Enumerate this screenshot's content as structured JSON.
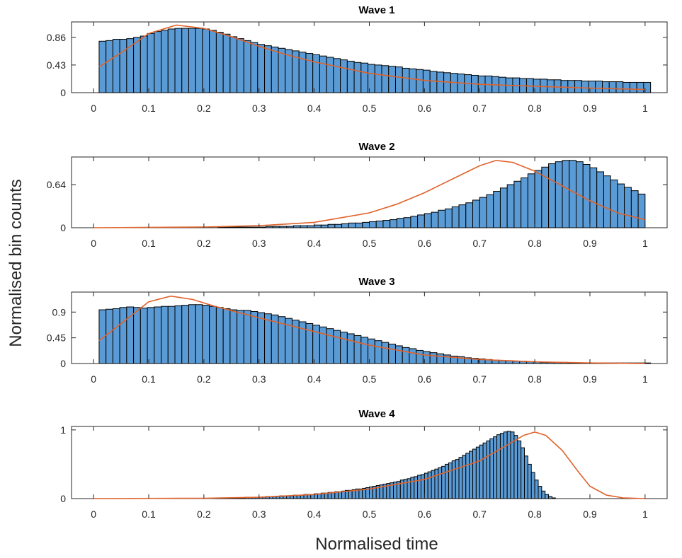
{
  "xlabel": "Normalised time",
  "ylabel": "Normalised bin counts",
  "colors": {
    "bar": "#5b9bd5",
    "bar_edge": "#000000",
    "fit": "#e0622a"
  },
  "chart_data": [
    {
      "type": "bar",
      "title": "Wave 1",
      "xlim": [
        -0.04,
        1.04
      ],
      "ylim": [
        0,
        1.1
      ],
      "xticks": [
        "0",
        "0.1",
        "0.2",
        "0.3",
        "0.4",
        "0.5",
        "0.6",
        "0.7",
        "0.8",
        "0.9",
        "1"
      ],
      "yticks": [
        "0",
        "0.43",
        "0.86"
      ],
      "ytick_values": [
        0,
        0.43,
        0.86
      ],
      "bin_width": 0.0125,
      "bin_start": 0.01,
      "values": [
        0.8,
        0.81,
        0.83,
        0.83,
        0.84,
        0.86,
        0.88,
        0.92,
        0.95,
        0.97,
        0.99,
        1.0,
        1.0,
        1.0,
        1.0,
        0.99,
        0.97,
        0.94,
        0.91,
        0.87,
        0.84,
        0.81,
        0.78,
        0.75,
        0.73,
        0.71,
        0.69,
        0.67,
        0.65,
        0.63,
        0.61,
        0.59,
        0.57,
        0.55,
        0.53,
        0.51,
        0.49,
        0.47,
        0.46,
        0.44,
        0.43,
        0.42,
        0.41,
        0.4,
        0.38,
        0.37,
        0.36,
        0.35,
        0.33,
        0.32,
        0.31,
        0.3,
        0.29,
        0.28,
        0.27,
        0.26,
        0.26,
        0.25,
        0.24,
        0.23,
        0.23,
        0.22,
        0.22,
        0.21,
        0.21,
        0.2,
        0.2,
        0.19,
        0.19,
        0.19,
        0.18,
        0.18,
        0.18,
        0.17,
        0.17,
        0.17,
        0.16,
        0.16,
        0.16,
        0.16
      ],
      "fit": {
        "x": [
          0.01,
          0.05,
          0.1,
          0.15,
          0.2,
          0.25,
          0.3,
          0.35,
          0.4,
          0.5,
          0.6,
          0.7,
          0.8,
          0.9,
          1.0
        ],
        "y": [
          0.4,
          0.62,
          0.92,
          1.05,
          1.0,
          0.87,
          0.72,
          0.59,
          0.48,
          0.3,
          0.19,
          0.13,
          0.1,
          0.07,
          0.05
        ]
      }
    },
    {
      "type": "bar",
      "title": "Wave 2",
      "xlim": [
        -0.04,
        1.04
      ],
      "ylim": [
        0,
        1.05
      ],
      "xticks": [
        "0",
        "0.1",
        "0.2",
        "0.3",
        "0.4",
        "0.5",
        "0.6",
        "0.7",
        "0.8",
        "0.9",
        "1"
      ],
      "yticks": [
        "0",
        "0.64"
      ],
      "ytick_values": [
        0,
        0.64
      ],
      "bin_width": 0.0125,
      "bin_start": 0.0,
      "values": [
        0,
        0,
        0,
        0,
        0,
        0,
        0,
        0,
        0,
        0,
        0,
        0,
        0,
        0,
        0,
        0,
        0,
        0,
        0.01,
        0.01,
        0.01,
        0.01,
        0.01,
        0.01,
        0.01,
        0.02,
        0.02,
        0.02,
        0.02,
        0.03,
        0.03,
        0.03,
        0.04,
        0.04,
        0.05,
        0.05,
        0.06,
        0.07,
        0.07,
        0.08,
        0.09,
        0.1,
        0.11,
        0.12,
        0.14,
        0.15,
        0.17,
        0.19,
        0.21,
        0.23,
        0.26,
        0.28,
        0.31,
        0.34,
        0.37,
        0.41,
        0.45,
        0.49,
        0.54,
        0.59,
        0.64,
        0.69,
        0.74,
        0.8,
        0.85,
        0.9,
        0.95,
        0.98,
        1.0,
        1.0,
        0.98,
        0.94,
        0.89,
        0.83,
        0.77,
        0.71,
        0.65,
        0.6,
        0.55,
        0.5
      ],
      "fit": {
        "x": [
          0,
          0.2,
          0.3,
          0.4,
          0.5,
          0.55,
          0.6,
          0.65,
          0.7,
          0.73,
          0.76,
          0.8,
          0.85,
          0.9,
          0.95,
          1.0
        ],
        "y": [
          0,
          0.01,
          0.03,
          0.08,
          0.22,
          0.35,
          0.52,
          0.72,
          0.92,
          1.0,
          0.97,
          0.84,
          0.62,
          0.4,
          0.22,
          0.12
        ]
      }
    },
    {
      "type": "bar",
      "title": "Wave 3",
      "xlim": [
        -0.04,
        1.04
      ],
      "ylim": [
        0,
        1.25
      ],
      "xticks": [
        "0",
        "0.1",
        "0.2",
        "0.3",
        "0.4",
        "0.5",
        "0.6",
        "0.7",
        "0.8",
        "0.9",
        "1"
      ],
      "yticks": [
        "0",
        "0.45",
        "0.9"
      ],
      "ytick_values": [
        0,
        0.45,
        0.9
      ],
      "bin_width": 0.0125,
      "bin_start": 0.01,
      "values": [
        0.94,
        0.95,
        0.96,
        0.98,
        0.99,
        0.98,
        0.97,
        0.98,
        0.99,
        1.0,
        1.0,
        1.01,
        1.02,
        1.03,
        1.03,
        1.02,
        1.0,
        0.98,
        0.96,
        0.94,
        0.93,
        0.93,
        0.91,
        0.89,
        0.87,
        0.85,
        0.82,
        0.79,
        0.76,
        0.73,
        0.7,
        0.67,
        0.64,
        0.61,
        0.58,
        0.55,
        0.52,
        0.49,
        0.46,
        0.43,
        0.4,
        0.37,
        0.34,
        0.31,
        0.28,
        0.26,
        0.23,
        0.21,
        0.19,
        0.17,
        0.15,
        0.13,
        0.12,
        0.1,
        0.09,
        0.08,
        0.07,
        0.06,
        0.05,
        0.05,
        0.04,
        0.04,
        0.03,
        0.03,
        0.02,
        0.02,
        0.02,
        0.02,
        0.01,
        0.01,
        0.01,
        0.01,
        0.01,
        0.01,
        0.01,
        0.01,
        0.01,
        0.01,
        0.01,
        0.01
      ],
      "fit": {
        "x": [
          0.01,
          0.05,
          0.1,
          0.14,
          0.18,
          0.22,
          0.3,
          0.4,
          0.5,
          0.6,
          0.7,
          0.8,
          0.9,
          1.0
        ],
        "y": [
          0.4,
          0.7,
          1.08,
          1.18,
          1.12,
          1.0,
          0.8,
          0.56,
          0.32,
          0.15,
          0.07,
          0.03,
          0.01,
          0.0
        ]
      }
    },
    {
      "type": "bar",
      "title": "Wave 4",
      "xlim": [
        -0.04,
        1.04
      ],
      "ylim": [
        0,
        1.05
      ],
      "xticks": [
        "0",
        "0.1",
        "0.2",
        "0.3",
        "0.4",
        "0.5",
        "0.6",
        "0.7",
        "0.8",
        "0.9",
        "1"
      ],
      "yticks": [
        "0",
        "1"
      ],
      "ytick_values": [
        0,
        1
      ],
      "bin_width": 0.00625,
      "bin_start": 0.0,
      "values": [
        0,
        0,
        0,
        0,
        0,
        0,
        0,
        0,
        0,
        0,
        0,
        0,
        0,
        0,
        0,
        0,
        0,
        0,
        0,
        0,
        0,
        0,
        0,
        0,
        0,
        0,
        0,
        0,
        0,
        0,
        0,
        0,
        0,
        0,
        0,
        0.01,
        0.01,
        0.01,
        0.01,
        0.01,
        0.01,
        0.01,
        0.01,
        0.01,
        0.02,
        0.02,
        0.02,
        0.02,
        0.02,
        0.02,
        0.03,
        0.03,
        0.03,
        0.03,
        0.04,
        0.04,
        0.04,
        0.04,
        0.05,
        0.05,
        0.05,
        0.06,
        0.06,
        0.06,
        0.07,
        0.07,
        0.08,
        0.08,
        0.09,
        0.09,
        0.1,
        0.1,
        0.11,
        0.12,
        0.12,
        0.13,
        0.14,
        0.14,
        0.15,
        0.16,
        0.17,
        0.18,
        0.19,
        0.2,
        0.21,
        0.22,
        0.23,
        0.24,
        0.25,
        0.27,
        0.28,
        0.29,
        0.31,
        0.32,
        0.34,
        0.35,
        0.37,
        0.39,
        0.41,
        0.43,
        0.45,
        0.47,
        0.5,
        0.52,
        0.55,
        0.57,
        0.6,
        0.63,
        0.66,
        0.69,
        0.72,
        0.75,
        0.78,
        0.81,
        0.84,
        0.87,
        0.9,
        0.93,
        0.95,
        0.97,
        0.98,
        0.97,
        0.92,
        0.84,
        0.74,
        0.62,
        0.5,
        0.38,
        0.27,
        0.18,
        0.11,
        0.06,
        0.03,
        0.01,
        0,
        0,
        0,
        0,
        0,
        0,
        0,
        0,
        0,
        0,
        0,
        0,
        0,
        0,
        0,
        0,
        0,
        0,
        0,
        0,
        0,
        0,
        0,
        0,
        0,
        0,
        0
      ],
      "fit": {
        "x": [
          0,
          0.2,
          0.3,
          0.4,
          0.5,
          0.6,
          0.7,
          0.75,
          0.78,
          0.8,
          0.82,
          0.85,
          0.88,
          0.9,
          0.93,
          0.96,
          1.0
        ],
        "y": [
          0,
          0.005,
          0.02,
          0.06,
          0.14,
          0.28,
          0.55,
          0.78,
          0.92,
          0.97,
          0.92,
          0.7,
          0.38,
          0.18,
          0.05,
          0.01,
          0.0
        ]
      }
    }
  ]
}
